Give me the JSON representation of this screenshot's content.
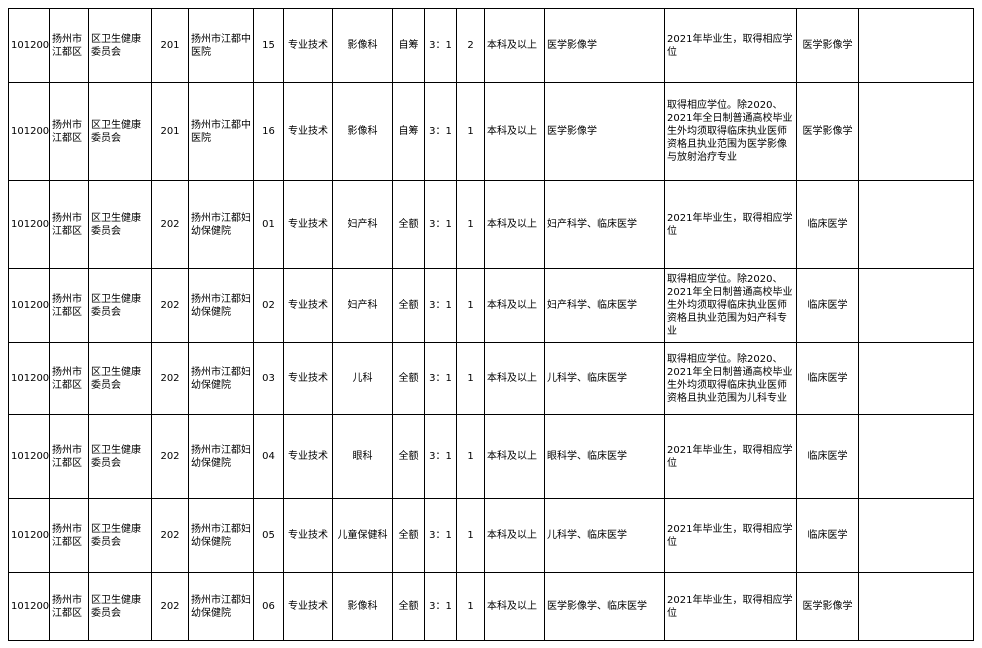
{
  "rows": [
    {
      "code": "101200",
      "area": "扬州市江都区",
      "dept": "区卫生健康委员会",
      "unit_code": "201",
      "unit": "扬州市江都中医院",
      "pos_code": "15",
      "pos_type": "专业技术",
      "post": "影像科",
      "funding": "自筹",
      "ratio": "3：1",
      "count": "2",
      "edu": "本科及以上",
      "major": "医学影像学",
      "req": "2021年毕业生，取得相应学位",
      "exam": "医学影像学",
      "note": ""
    },
    {
      "code": "101200",
      "area": "扬州市江都区",
      "dept": "区卫生健康委员会",
      "unit_code": "201",
      "unit": "扬州市江都中医院",
      "pos_code": "16",
      "pos_type": "专业技术",
      "post": "影像科",
      "funding": "自筹",
      "ratio": "3：1",
      "count": "1",
      "edu": "本科及以上",
      "major": "医学影像学",
      "req": "取得相应学位。除2020、2021年全日制普通高校毕业生外均须取得临床执业医师资格且执业范围为医学影像与放射治疗专业",
      "exam": "医学影像学",
      "note": ""
    },
    {
      "code": "101200",
      "area": "扬州市江都区",
      "dept": "区卫生健康委员会",
      "unit_code": "202",
      "unit": "扬州市江都妇幼保健院",
      "pos_code": "01",
      "pos_type": "专业技术",
      "post": "妇产科",
      "funding": "全额",
      "ratio": "3：1",
      "count": "1",
      "edu": "本科及以上",
      "major": "妇产科学、临床医学",
      "req": "2021年毕业生，取得相应学位",
      "exam": "临床医学",
      "note": ""
    },
    {
      "code": "101200",
      "area": "扬州市江都区",
      "dept": "区卫生健康委员会",
      "unit_code": "202",
      "unit": "扬州市江都妇幼保健院",
      "pos_code": "02",
      "pos_type": "专业技术",
      "post": "妇产科",
      "funding": "全额",
      "ratio": "3：1",
      "count": "1",
      "edu": "本科及以上",
      "major": "妇产科学、临床医学",
      "req": "取得相应学位。除2020、2021年全日制普通高校毕业生外均须取得临床执业医师资格且执业范围为妇产科专业",
      "exam": "临床医学",
      "note": ""
    },
    {
      "code": "101200",
      "area": "扬州市江都区",
      "dept": "区卫生健康委员会",
      "unit_code": "202",
      "unit": "扬州市江都妇幼保健院",
      "pos_code": "03",
      "pos_type": "专业技术",
      "post": "儿科",
      "funding": "全额",
      "ratio": "3：1",
      "count": "1",
      "edu": "本科及以上",
      "major": "儿科学、临床医学",
      "req": "取得相应学位。除2020、2021年全日制普通高校毕业生外均须取得临床执业医师资格且执业范围为儿科专业",
      "exam": "临床医学",
      "note": ""
    },
    {
      "code": "101200",
      "area": "扬州市江都区",
      "dept": "区卫生健康委员会",
      "unit_code": "202",
      "unit": "扬州市江都妇幼保健院",
      "pos_code": "04",
      "pos_type": "专业技术",
      "post": "眼科",
      "funding": "全额",
      "ratio": "3：1",
      "count": "1",
      "edu": "本科及以上",
      "major": "眼科学、临床医学",
      "req": "2021年毕业生，取得相应学位",
      "exam": "临床医学",
      "note": ""
    },
    {
      "code": "101200",
      "area": "扬州市江都区",
      "dept": "区卫生健康委员会",
      "unit_code": "202",
      "unit": "扬州市江都妇幼保健院",
      "pos_code": "05",
      "pos_type": "专业技术",
      "post": "儿童保健科",
      "funding": "全额",
      "ratio": "3：1",
      "count": "1",
      "edu": "本科及以上",
      "major": "儿科学、临床医学",
      "req": "2021年毕业生，取得相应学位",
      "exam": "临床医学",
      "note": ""
    },
    {
      "code": "101200",
      "area": "扬州市江都区",
      "dept": "区卫生健康委员会",
      "unit_code": "202",
      "unit": "扬州市江都妇幼保健院",
      "pos_code": "06",
      "pos_type": "专业技术",
      "post": "影像科",
      "funding": "全额",
      "ratio": "3：1",
      "count": "1",
      "edu": "本科及以上",
      "major": "医学影像学、临床医学",
      "req": "2021年毕业生，取得相应学位",
      "exam": "医学影像学",
      "note": ""
    }
  ]
}
